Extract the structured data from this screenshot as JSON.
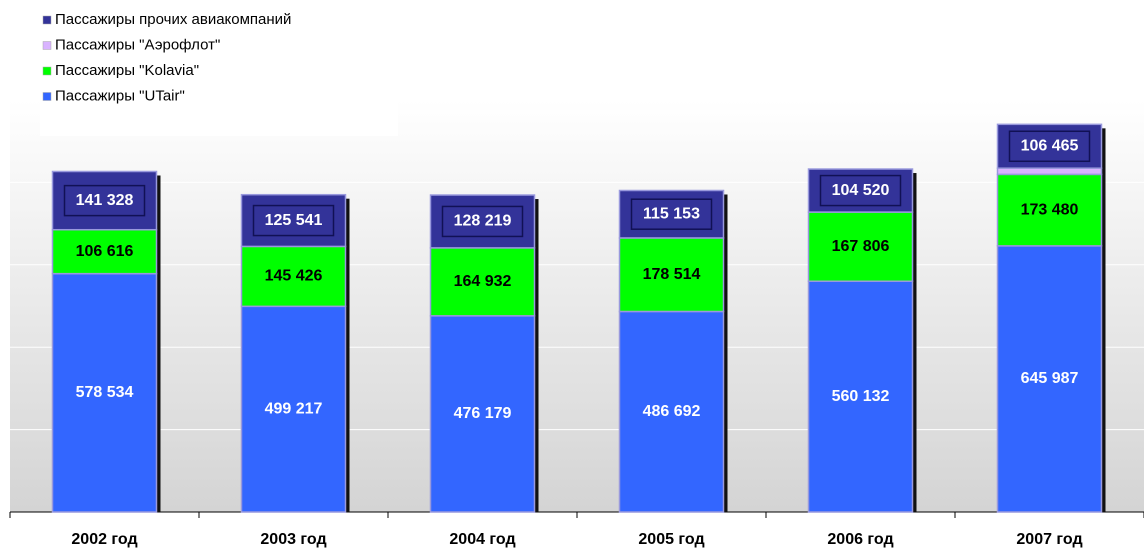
{
  "chart_data": {
    "type": "stacked_bar",
    "categories": [
      "2002 год",
      "2003 год",
      "2004 год",
      "2005 год",
      "2006 год",
      "2007 год"
    ],
    "series": [
      {
        "name": "Пассажиры \"UTair\"",
        "color": "#3366ff",
        "values": [
          578534,
          499217,
          476179,
          486692,
          560132,
          645987
        ],
        "value_labels": [
          "578 534",
          "499 217",
          "476 179",
          "486 692",
          "560 132",
          "645 987"
        ]
      },
      {
        "name": "Пассажиры \"Kolavia\"",
        "color": "#00ff00",
        "values": [
          106616,
          145426,
          164932,
          178514,
          167806,
          173480
        ],
        "value_labels": [
          "106 616",
          "145 426",
          "164 932",
          "178 514",
          "167 806",
          "173 480"
        ]
      },
      {
        "name": "Пассажиры \"Аэрофлот\"",
        "color": "#d9b3ff",
        "values": [
          0,
          0,
          0,
          0,
          0,
          15000
        ]
      },
      {
        "name": "Пассажиры прочих авиакомпаний",
        "color": "#333399",
        "values": [
          141328,
          125541,
          128219,
          115153,
          104520,
          106465
        ],
        "value_labels": [
          "141 328",
          "125 541",
          "128 219",
          "115 153",
          "104 520",
          "106 465"
        ]
      }
    ],
    "ylim": [
      0,
      1000000
    ],
    "yticks": [
      0,
      200000,
      400000,
      600000,
      800000
    ],
    "grid": true
  }
}
